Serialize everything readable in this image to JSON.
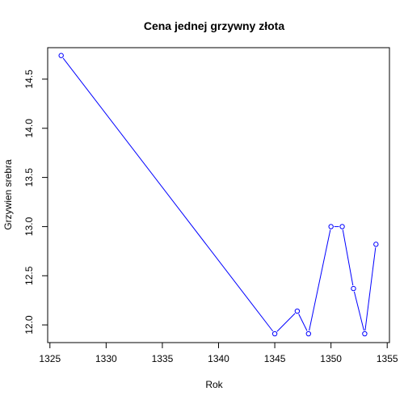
{
  "chart_data": {
    "type": "line",
    "title": "Cena jednej grzywny złota",
    "xlabel": "Rok",
    "ylabel": "Grzywien srebra",
    "xlim": [
      1324.8,
      1355.2
    ],
    "ylim": [
      11.82,
      14.82
    ],
    "x_ticks": [
      1325,
      1330,
      1335,
      1340,
      1345,
      1350,
      1355
    ],
    "y_ticks": [
      12.0,
      12.5,
      13.0,
      13.5,
      14.0,
      14.5
    ],
    "y_tick_labels": [
      "12.0",
      "12.5",
      "13.0",
      "13.5",
      "14.0",
      "14.5"
    ],
    "series": [
      {
        "x": [
          1326,
          1345,
          1347,
          1348,
          1350,
          1351,
          1352,
          1353,
          1354
        ],
        "y": [
          14.74,
          11.91,
          12.14,
          11.91,
          13.0,
          13.0,
          12.37,
          11.91,
          12.82
        ],
        "color": "#0000ff",
        "marker": "open-circle"
      }
    ],
    "grid": false,
    "legend": "none"
  }
}
